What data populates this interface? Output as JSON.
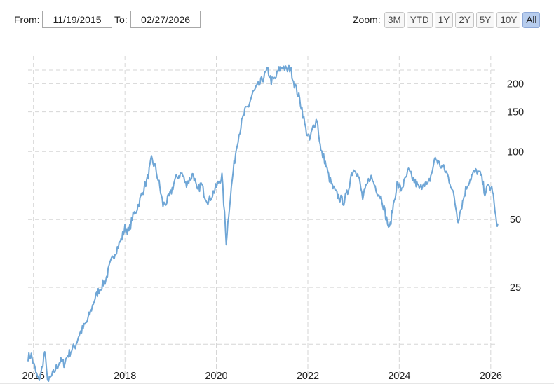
{
  "range": {
    "from_label": "From:",
    "from_value": "11/19/2015",
    "to_label": "To:",
    "to_value": "02/27/2026"
  },
  "zoom": {
    "label": "Zoom:",
    "buttons": [
      "3M",
      "YTD",
      "1Y",
      "2Y",
      "5Y",
      "10Y",
      "All"
    ],
    "active": "All"
  },
  "colors": {
    "series": "#6fa6d6",
    "grid": "#d6d6d6",
    "active_zoom": "#b7cdee"
  },
  "chart_data": {
    "type": "line",
    "y_scale": "log",
    "grid": "dashed",
    "x_tick_labels": [
      "2016",
      "2018",
      "2020",
      "2022",
      "2024",
      "2026"
    ],
    "y_tick_labels": [
      "25",
      "50",
      "100",
      "150",
      "200"
    ],
    "y_ticks": [
      25,
      50,
      100,
      150,
      200
    ],
    "ylim": [
      11,
      265
    ],
    "xlim": [
      "2015-11-19",
      "2026-02-27"
    ],
    "series": [
      {
        "x": [
          "2015-11-19",
          "2015-12-15",
          "2016-01-20",
          "2016-02-10",
          "2016-03-01",
          "2016-03-31",
          "2016-04-15",
          "2016-05-01",
          "2016-06-01",
          "2016-07-01",
          "2016-08-01",
          "2016-09-01",
          "2016-10-01",
          "2016-11-01",
          "2016-12-01",
          "2017-01-01",
          "2017-02-01",
          "2017-03-01",
          "2017-04-01",
          "2017-05-01",
          "2017-06-01",
          "2017-07-01",
          "2017-08-01",
          "2017-09-01",
          "2017-10-01",
          "2017-11-01",
          "2017-12-01",
          "2018-01-01",
          "2018-02-01",
          "2018-03-01",
          "2018-04-01",
          "2018-05-01",
          "2018-06-01",
          "2018-07-01",
          "2018-08-01",
          "2018-09-01",
          "2018-10-01",
          "2018-11-01",
          "2018-12-01",
          "2019-01-01",
          "2019-02-01",
          "2019-03-01",
          "2019-04-01",
          "2019-05-01",
          "2019-06-01",
          "2019-07-01",
          "2019-08-01",
          "2019-09-01",
          "2019-10-01",
          "2019-11-01",
          "2019-12-01",
          "2020-01-15",
          "2020-02-15",
          "2020-03-20",
          "2020-04-15",
          "2020-05-15",
          "2020-06-15",
          "2020-07-15",
          "2020-08-15",
          "2020-09-15",
          "2020-10-15",
          "2020-11-15",
          "2020-12-15",
          "2021-01-15",
          "2021-02-15",
          "2021-03-15",
          "2021-04-15",
          "2021-05-15",
          "2021-06-15",
          "2021-07-15",
          "2021-08-15",
          "2021-09-15",
          "2021-10-15",
          "2021-11-15",
          "2021-12-15",
          "2022-01-15",
          "2022-02-15",
          "2022-03-15",
          "2022-04-15",
          "2022-05-15",
          "2022-06-15",
          "2022-07-15",
          "2022-08-15",
          "2022-09-15",
          "2022-10-15",
          "2022-11-15",
          "2022-12-15",
          "2023-01-15",
          "2023-02-15",
          "2023-03-15",
          "2023-04-15",
          "2023-05-15",
          "2023-06-15",
          "2023-07-15",
          "2023-08-15",
          "2023-09-15",
          "2023-10-15",
          "2023-11-15",
          "2023-12-15",
          "2024-01-15",
          "2024-02-15",
          "2024-03-15",
          "2024-04-15",
          "2024-05-15",
          "2024-06-15",
          "2024-07-15",
          "2024-08-15",
          "2024-09-15",
          "2024-10-15",
          "2024-11-15",
          "2024-12-15",
          "2025-01-15",
          "2025-02-15",
          "2025-03-15",
          "2025-04-15",
          "2025-05-15",
          "2025-06-15",
          "2025-07-15",
          "2025-08-15",
          "2025-09-15",
          "2025-10-15",
          "2025-11-15",
          "2025-12-15",
          "2026-01-15",
          "2026-02-10",
          "2026-02-27"
        ],
        "y": [
          12.3,
          12.5,
          10.5,
          9.7,
          10.3,
          13.0,
          10.5,
          9.6,
          10.2,
          11.0,
          11.8,
          11.5,
          12.5,
          13.2,
          13.8,
          15.5,
          16.5,
          17.5,
          19.5,
          22.0,
          24.0,
          25.5,
          27.0,
          31.0,
          34.5,
          37.5,
          40.5,
          46.0,
          44.0,
          51.0,
          55.0,
          61.0,
          69.0,
          76.0,
          92.0,
          85.0,
          72.0,
          58.0,
          60.0,
          65.0,
          74.0,
          78.0,
          80.0,
          72.0,
          75.0,
          80.0,
          66.0,
          72.0,
          64.0,
          60.0,
          65.0,
          72.0,
          78.0,
          40.0,
          58.0,
          82.0,
          110.0,
          130.0,
          150.0,
          160.0,
          180.0,
          190.0,
          200.0,
          215.0,
          230.0,
          205.0,
          210.0,
          230.0,
          240.0,
          228.0,
          235.0,
          200.0,
          180.0,
          155.0,
          125.0,
          112.0,
          130.0,
          140.0,
          100.0,
          92.0,
          78.0,
          70.0,
          65.0,
          62.0,
          60.0,
          66.0,
          80.0,
          85.0,
          75.0,
          62.0,
          70.0,
          78.0,
          72.0,
          66.0,
          62.0,
          52.0,
          45.0,
          58.0,
          72.0,
          68.0,
          74.0,
          82.0,
          76.0,
          72.0,
          68.0,
          74.0,
          70.0,
          80.0,
          94.0,
          88.0,
          85.0,
          80.0,
          72.0,
          62.0,
          50.0,
          58.0,
          68.0,
          75.0,
          80.0,
          82.0,
          78.0,
          66.0,
          70.0,
          68.0,
          50.0,
          48.0
        ]
      }
    ]
  }
}
